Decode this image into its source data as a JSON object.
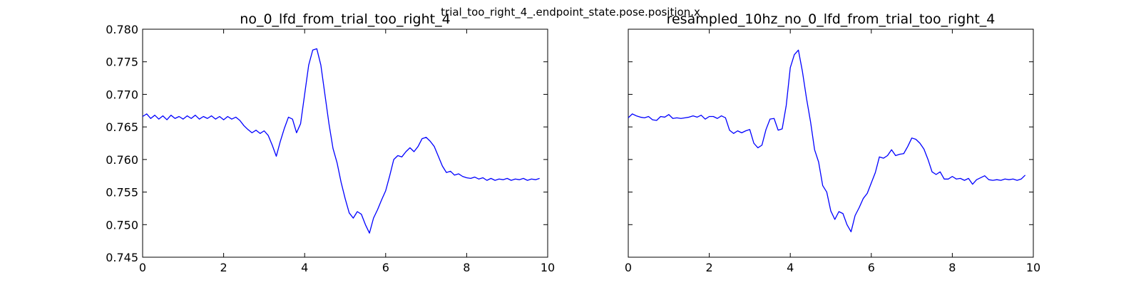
{
  "figure": {
    "suptitle": "trial_too_right_4_.endpoint_state.pose.position.x",
    "line_color": "#0000ff"
  },
  "chart_data": [
    {
      "type": "line",
      "title": "no_0_lfd_from_trial_too_right_4",
      "xlabel": "",
      "ylabel": "",
      "xlim": [
        0,
        10
      ],
      "ylim": [
        0.745,
        0.78
      ],
      "grid": false,
      "xticks": [
        "0",
        "2",
        "4",
        "6",
        "8",
        "10"
      ],
      "yticks": [
        "0.745",
        "0.750",
        "0.755",
        "0.760",
        "0.765",
        "0.770",
        "0.775",
        "0.780"
      ],
      "series": [
        {
          "color": "#0000ff",
          "x": [
            0.0,
            0.1,
            0.2,
            0.3,
            0.4,
            0.5,
            0.6,
            0.7,
            0.8,
            0.9,
            1.0,
            1.1,
            1.2,
            1.3,
            1.4,
            1.5,
            1.6,
            1.7,
            1.8,
            1.9,
            2.0,
            2.1,
            2.2,
            2.3,
            2.4,
            2.5,
            2.6,
            2.7,
            2.8,
            2.9,
            3.0,
            3.1,
            3.2,
            3.3,
            3.4,
            3.5,
            3.6,
            3.7,
            3.8,
            3.9,
            4.0,
            4.1,
            4.2,
            4.3,
            4.4,
            4.5,
            4.6,
            4.7,
            4.8,
            4.9,
            5.0,
            5.1,
            5.2,
            5.3,
            5.4,
            5.5,
            5.6,
            5.7,
            5.8,
            5.9,
            6.0,
            6.1,
            6.2,
            6.3,
            6.4,
            6.5,
            6.6,
            6.7,
            6.8,
            6.9,
            7.0,
            7.1,
            7.2,
            7.3,
            7.4,
            7.5,
            7.6,
            7.7,
            7.8,
            7.9,
            8.0,
            8.1,
            8.2,
            8.3,
            8.4,
            8.5,
            8.6,
            8.7,
            8.8,
            8.9,
            9.0,
            9.1,
            9.2,
            9.3,
            9.4,
            9.5,
            9.6,
            9.7,
            9.8
          ],
          "y": [
            0.7666,
            0.767,
            0.7663,
            0.7668,
            0.7662,
            0.7667,
            0.7661,
            0.7668,
            0.7663,
            0.7666,
            0.7662,
            0.7667,
            0.7663,
            0.7668,
            0.7662,
            0.7666,
            0.7663,
            0.7667,
            0.7662,
            0.7666,
            0.7661,
            0.7666,
            0.7662,
            0.7665,
            0.766,
            0.7652,
            0.7646,
            0.7641,
            0.7645,
            0.764,
            0.7644,
            0.7637,
            0.7622,
            0.7605,
            0.7628,
            0.7648,
            0.7665,
            0.7662,
            0.7641,
            0.7655,
            0.77,
            0.7745,
            0.7768,
            0.777,
            0.7745,
            0.77,
            0.7655,
            0.7617,
            0.7595,
            0.7565,
            0.754,
            0.7518,
            0.751,
            0.752,
            0.7516,
            0.75,
            0.7487,
            0.751,
            0.7523,
            0.7538,
            0.7552,
            0.7575,
            0.76,
            0.7606,
            0.7604,
            0.7612,
            0.7618,
            0.7612,
            0.762,
            0.7632,
            0.7634,
            0.7628,
            0.762,
            0.7605,
            0.759,
            0.758,
            0.7582,
            0.7576,
            0.7578,
            0.7574,
            0.7572,
            0.7571,
            0.7573,
            0.757,
            0.7572,
            0.7568,
            0.7571,
            0.7568,
            0.757,
            0.7569,
            0.7571,
            0.7568,
            0.757,
            0.7569,
            0.7571,
            0.7568,
            0.757,
            0.7569,
            0.7571
          ]
        }
      ]
    },
    {
      "type": "line",
      "title": "resampled_10hz_no_0_lfd_from_trial_too_right_4",
      "xlabel": "",
      "ylabel": "",
      "xlim": [
        0,
        10
      ],
      "ylim": [
        0.745,
        0.78
      ],
      "grid": false,
      "xticks": [
        "0",
        "2",
        "4",
        "6",
        "8",
        "10"
      ],
      "yticks": [],
      "series": [
        {
          "color": "#0000ff",
          "x": [
            0.0,
            0.1,
            0.2,
            0.3,
            0.4,
            0.5,
            0.6,
            0.7,
            0.8,
            0.9,
            1.0,
            1.1,
            1.2,
            1.3,
            1.4,
            1.5,
            1.6,
            1.7,
            1.8,
            1.9,
            2.0,
            2.1,
            2.2,
            2.3,
            2.4,
            2.5,
            2.6,
            2.7,
            2.8,
            2.9,
            3.0,
            3.1,
            3.2,
            3.3,
            3.4,
            3.5,
            3.6,
            3.7,
            3.8,
            3.9,
            4.0,
            4.1,
            4.2,
            4.3,
            4.4,
            4.5,
            4.6,
            4.7,
            4.8,
            4.9,
            5.0,
            5.1,
            5.2,
            5.3,
            5.4,
            5.5,
            5.6,
            5.7,
            5.8,
            5.9,
            6.0,
            6.1,
            6.2,
            6.3,
            6.4,
            6.5,
            6.6,
            6.7,
            6.8,
            6.9,
            7.0,
            7.1,
            7.2,
            7.3,
            7.4,
            7.5,
            7.6,
            7.7,
            7.8,
            7.9,
            8.0,
            8.1,
            8.2,
            8.3,
            8.4,
            8.5,
            8.6,
            8.7,
            8.8,
            8.9,
            9.0,
            9.1,
            9.2,
            9.3,
            9.4,
            9.5,
            9.6,
            9.7,
            9.8
          ],
          "y": [
            0.7664,
            0.767,
            0.7667,
            0.7665,
            0.7664,
            0.7666,
            0.7661,
            0.766,
            0.7666,
            0.7665,
            0.7669,
            0.7663,
            0.7664,
            0.7663,
            0.7664,
            0.7665,
            0.7667,
            0.7665,
            0.7668,
            0.7662,
            0.7666,
            0.7666,
            0.7663,
            0.7667,
            0.7664,
            0.7645,
            0.764,
            0.7644,
            0.7641,
            0.7644,
            0.7646,
            0.7625,
            0.7618,
            0.7622,
            0.7646,
            0.7662,
            0.7663,
            0.7645,
            0.7647,
            0.7683,
            0.7741,
            0.7761,
            0.7768,
            0.7735,
            0.7694,
            0.7658,
            0.7615,
            0.7596,
            0.756,
            0.755,
            0.7521,
            0.7508,
            0.752,
            0.7517,
            0.75,
            0.7489,
            0.7514,
            0.7526,
            0.754,
            0.7548,
            0.7564,
            0.758,
            0.7604,
            0.7602,
            0.7606,
            0.7615,
            0.7606,
            0.7608,
            0.7609,
            0.762,
            0.7633,
            0.7631,
            0.7625,
            0.7616,
            0.76,
            0.7581,
            0.7577,
            0.7581,
            0.757,
            0.757,
            0.7574,
            0.757,
            0.7571,
            0.7568,
            0.7571,
            0.7562,
            0.7569,
            0.7572,
            0.7575,
            0.7569,
            0.7568,
            0.7569,
            0.7568,
            0.757,
            0.7569,
            0.757,
            0.7568,
            0.757,
            0.7576
          ]
        }
      ]
    }
  ]
}
